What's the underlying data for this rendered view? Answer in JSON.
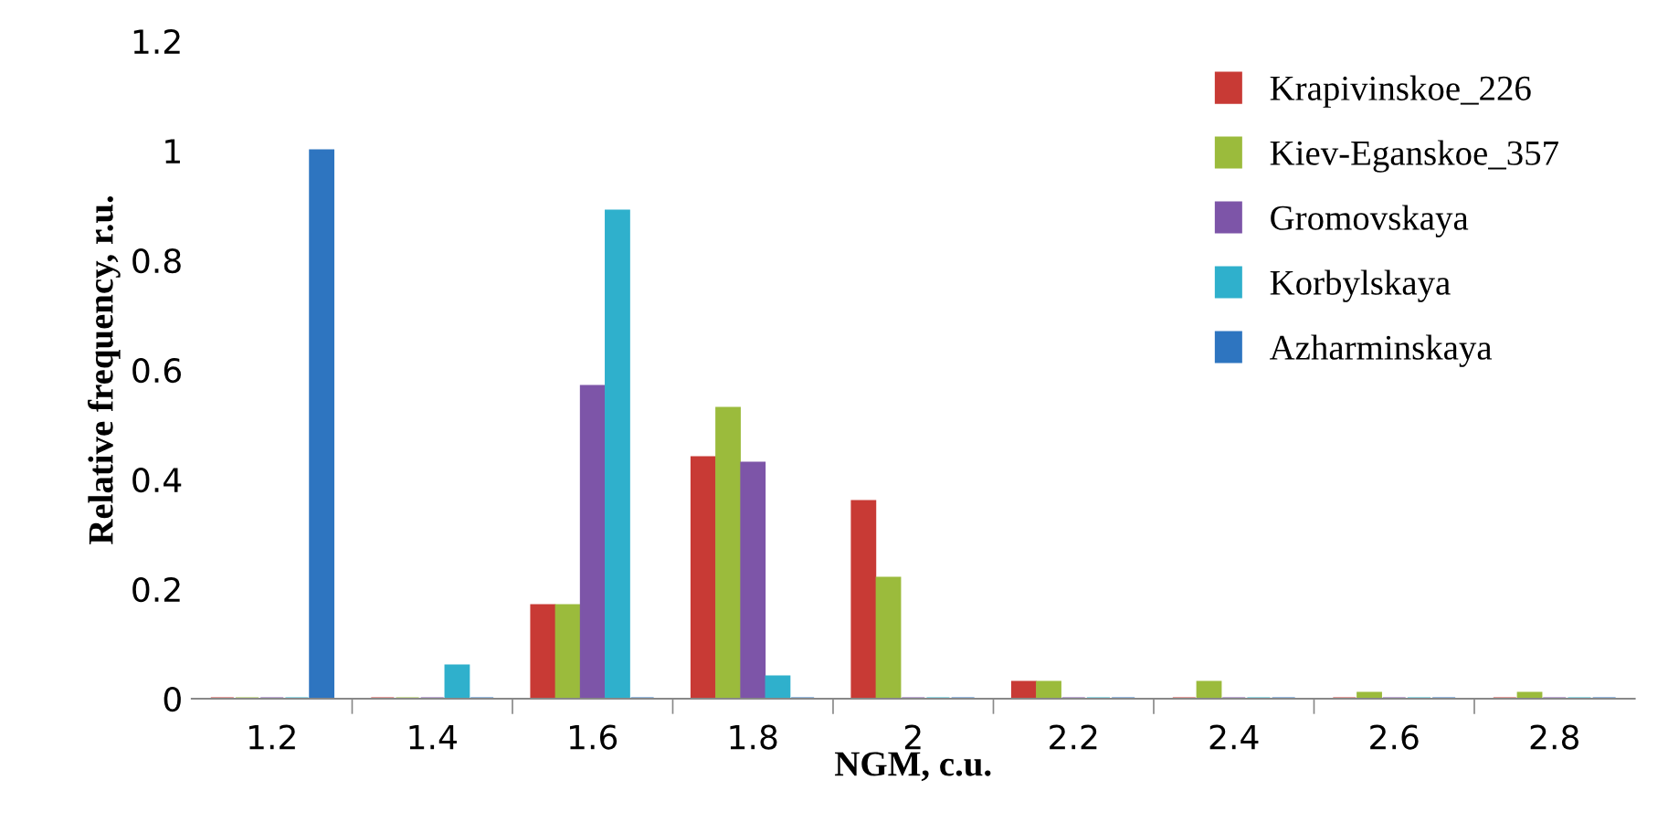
{
  "chart_data": {
    "type": "bar",
    "xlabel": "NGM, c.u.",
    "ylabel": "Relative frequency, r.u.",
    "categories": [
      "1.2",
      "1.4",
      "1.6",
      "1.8",
      "2",
      "2.2",
      "2.4",
      "2.6",
      "2.8"
    ],
    "series": [
      {
        "name": "Krapivinskoe_226",
        "color": "#c83a35",
        "values": [
          0,
          0,
          0.17,
          0.44,
          0.36,
          0.03,
          0,
          0,
          0
        ]
      },
      {
        "name": "Kiev-Eganskoe_357",
        "color": "#9bbb3c",
        "values": [
          0,
          0,
          0.17,
          0.53,
          0.22,
          0.03,
          0.03,
          0.01,
          0.01
        ]
      },
      {
        "name": "Gromovskaya",
        "color": "#7d55a8",
        "values": [
          0,
          0,
          0.57,
          0.43,
          0,
          0,
          0,
          0,
          0
        ]
      },
      {
        "name": "Korbylskaya",
        "color": "#2fb0cc",
        "values": [
          0,
          0.06,
          0.89,
          0.04,
          0,
          0,
          0,
          0,
          0
        ]
      },
      {
        "name": "Azharminskaya",
        "color": "#2e75c0",
        "values": [
          1,
          0,
          0,
          0,
          0,
          0,
          0,
          0,
          0
        ]
      }
    ],
    "ylim": [
      0,
      1.2
    ],
    "yticks": [
      0,
      {
        "value": 0.2,
        "label": "0.2"
      },
      {
        "value": 0.4,
        "label": "0.4"
      },
      {
        "value": 0.6,
        "label": "0.6"
      },
      {
        "value": 0.8,
        "label": "0.8"
      },
      1,
      {
        "value": 1.2,
        "label": "1.2"
      }
    ],
    "grid": false,
    "legend": "top right"
  }
}
